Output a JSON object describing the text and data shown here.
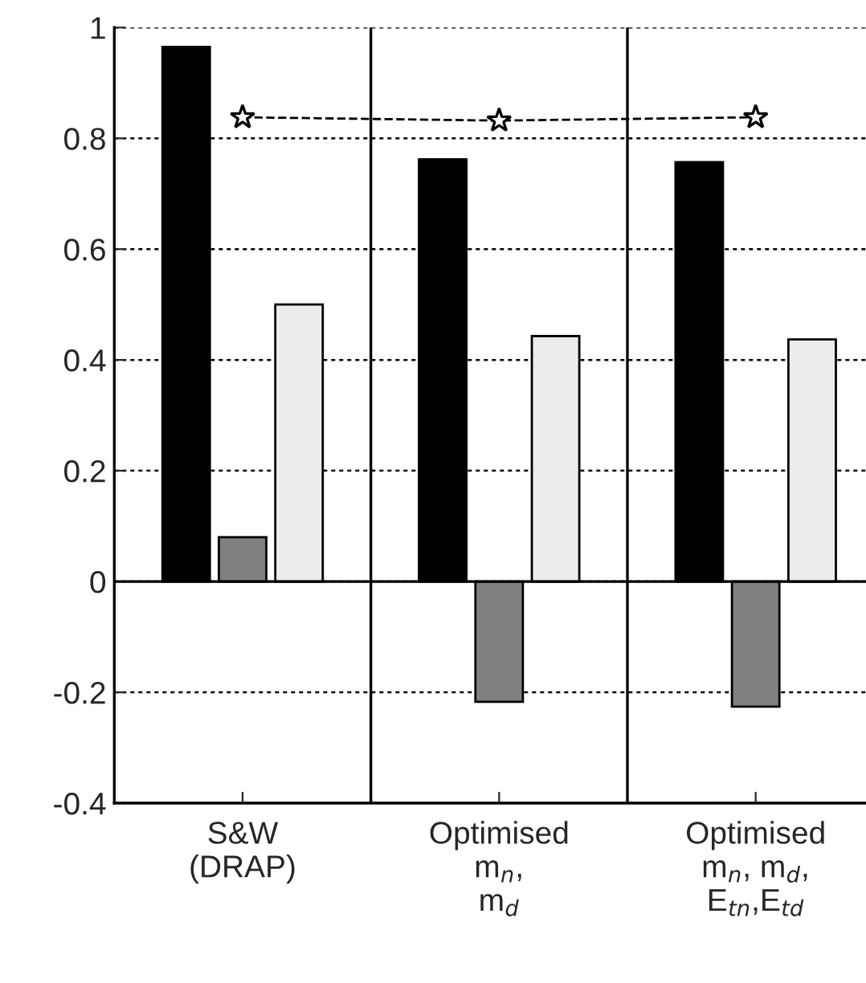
{
  "chart_data": {
    "type": "bar",
    "categories": [
      "S&W\n(DRAP)",
      "Optimised\nm$_{n}$,\nm$_{d}$",
      "Optimised\nm$_{n}$, m$_{d}$,\nE$_{tn}$,E$_{td}$"
    ],
    "series": [
      {
        "color": "#000000",
        "values": [
          0.965,
          0.762,
          0.757
        ]
      },
      {
        "color": "#808080",
        "values": [
          0.08,
          -0.217,
          -0.226
        ]
      },
      {
        "color": "#ececec",
        "values": [
          0.5,
          0.443,
          0.437
        ]
      },
      {
        "type": "line",
        "color": "#000000",
        "marker": "star",
        "line_style": "dashed",
        "values": [
          0.838,
          0.832,
          0.838
        ]
      }
    ],
    "ylim": [
      -0.4,
      1
    ],
    "yticks": [
      -0.4,
      -0.2,
      0,
      0.2,
      0.4,
      0.6,
      0.8,
      1
    ],
    "grid": "y"
  }
}
